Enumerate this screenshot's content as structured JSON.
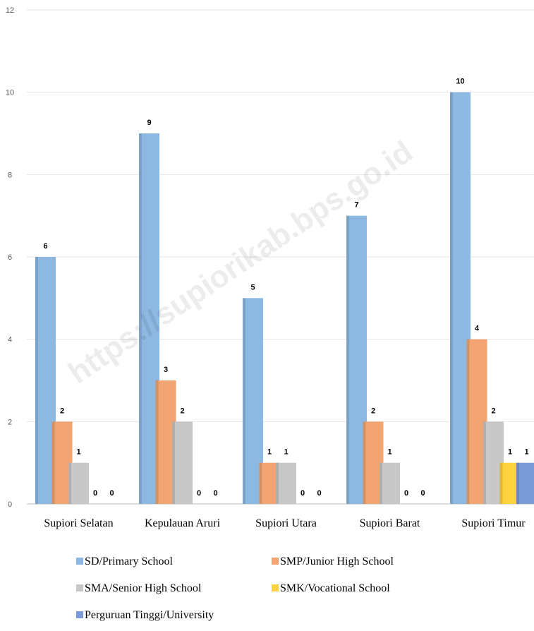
{
  "chart_data": {
    "type": "bar",
    "title": "",
    "xlabel": "",
    "ylabel": "",
    "ylim": [
      0,
      12
    ],
    "yticks": [
      0,
      2,
      4,
      6,
      8,
      10,
      12
    ],
    "grid": true,
    "legend_position": "bottom",
    "categories": [
      "Supiori Selatan",
      "Kepulauan Aruri",
      "Supiori Utara",
      "Supiori Barat",
      "Supiori Timur"
    ],
    "series": [
      {
        "name": "SD/Primary School",
        "color": "#8db8e2",
        "values": [
          6,
          9,
          5,
          7,
          10
        ]
      },
      {
        "name": "SMP/Junior High School",
        "color": "#f2a572",
        "values": [
          2,
          3,
          1,
          2,
          4
        ]
      },
      {
        "name": "SMA/Senior High School",
        "color": "#c8c8c8",
        "values": [
          1,
          2,
          1,
          1,
          2
        ]
      },
      {
        "name": "SMK/Vocational School",
        "color": "#ffd23f",
        "values": [
          0,
          0,
          0,
          0,
          1
        ]
      },
      {
        "name": "Perguruan Tinggi/University",
        "color": "#7a9bd6",
        "values": [
          0,
          0,
          0,
          0,
          1
        ]
      }
    ]
  },
  "watermark": "https://supiorikab.bps.go.id"
}
